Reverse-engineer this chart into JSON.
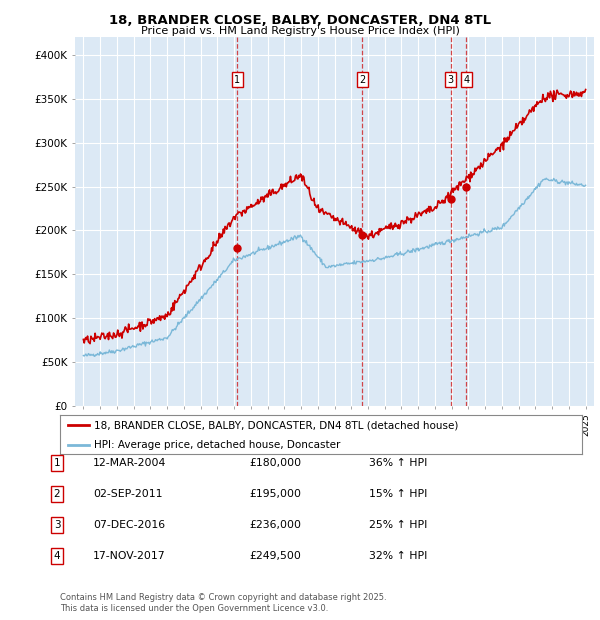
{
  "title1": "18, BRANDER CLOSE, BALBY, DONCASTER, DN4 8TL",
  "title2": "Price paid vs. HM Land Registry's House Price Index (HPI)",
  "ylim": [
    0,
    420000
  ],
  "yticks": [
    0,
    50000,
    100000,
    150000,
    200000,
    250000,
    300000,
    350000,
    400000
  ],
  "ytick_labels": [
    "£0",
    "£50K",
    "£100K",
    "£150K",
    "£200K",
    "£250K",
    "£300K",
    "£350K",
    "£400K"
  ],
  "background_color": "#ffffff",
  "plot_bg_color": "#dce9f5",
  "grid_color": "#ffffff",
  "hpi_color": "#7bb8d8",
  "price_color": "#cc0000",
  "transaction_dates": [
    2004.19,
    2011.67,
    2016.93,
    2017.88
  ],
  "transaction_prices": [
    180000,
    195000,
    236000,
    249500
  ],
  "transaction_labels": [
    "1",
    "2",
    "3",
    "4"
  ],
  "legend_label_price": "18, BRANDER CLOSE, BALBY, DONCASTER, DN4 8TL (detached house)",
  "legend_label_hpi": "HPI: Average price, detached house, Doncaster",
  "table_data": [
    [
      "1",
      "12-MAR-2004",
      "£180,000",
      "36% ↑ HPI"
    ],
    [
      "2",
      "02-SEP-2011",
      "£195,000",
      "15% ↑ HPI"
    ],
    [
      "3",
      "07-DEC-2016",
      "£236,000",
      "25% ↑ HPI"
    ],
    [
      "4",
      "17-NOV-2017",
      "£249,500",
      "32% ↑ HPI"
    ]
  ],
  "footnote": "Contains HM Land Registry data © Crown copyright and database right 2025.\nThis data is licensed under the Open Government Licence v3.0.",
  "xlim_start": 1994.5,
  "xlim_end": 2025.5
}
